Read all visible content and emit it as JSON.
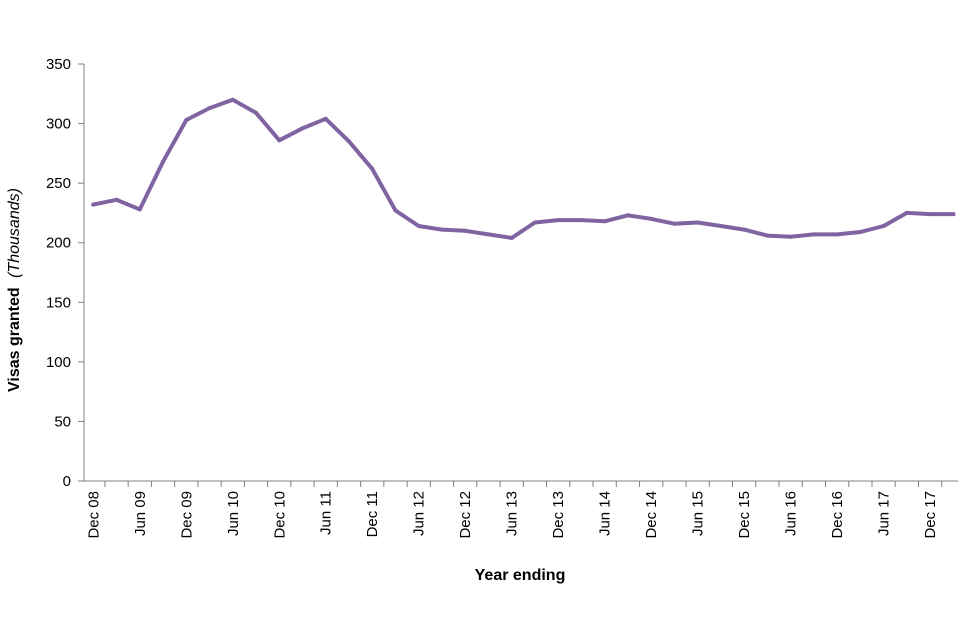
{
  "chart_data": {
    "type": "line",
    "title": "",
    "xlabel": "Year ending",
    "ylabel": "Visas granted",
    "ylabel_unit": "(Thousands)",
    "ylim": [
      0,
      350
    ],
    "yticks": [
      0,
      50,
      100,
      150,
      200,
      250,
      300,
      350
    ],
    "grid": false,
    "legend": "none",
    "line_color": "#8064a2",
    "axis_color": "#808080",
    "x": [
      "Dec 08",
      "Mar 09",
      "Jun 09",
      "Sep 09",
      "Dec 09",
      "Mar 10",
      "Jun 10",
      "Sep 10",
      "Dec 10",
      "Mar 11",
      "Jun 11",
      "Sep 11",
      "Dec 11",
      "Mar 12",
      "Jun 12",
      "Sep 12",
      "Dec 12",
      "Mar 13",
      "Jun 13",
      "Sep 13",
      "Dec 13",
      "Mar 14",
      "Jun 14",
      "Sep 14",
      "Dec 14",
      "Mar 15",
      "Jun 15",
      "Sep 15",
      "Dec 15",
      "Mar 16",
      "Jun 16",
      "Sep 16",
      "Dec 16",
      "Mar 17",
      "Jun 17",
      "Sep 17",
      "Dec 17",
      "Mar 18"
    ],
    "tick_labels": [
      "Dec 08",
      "Jun 09",
      "Dec 09",
      "Jun 10",
      "Dec 10",
      "Jun 11",
      "Dec 11",
      "Jun 12",
      "Dec 12",
      "Jun 13",
      "Dec 13",
      "Jun 14",
      "Dec 14",
      "Jun 15",
      "Dec 15",
      "Jun 16",
      "Dec 16",
      "Jun 17",
      "Dec 17"
    ],
    "series": [
      {
        "values": [
          232,
          236,
          228,
          268,
          303,
          313,
          320,
          309,
          286,
          296,
          304,
          285,
          262,
          227,
          214,
          211,
          210,
          207,
          204,
          217,
          219,
          219,
          218,
          223,
          220,
          216,
          217,
          214,
          211,
          206,
          205,
          207,
          207,
          209,
          214,
          225,
          224,
          224
        ]
      }
    ]
  }
}
